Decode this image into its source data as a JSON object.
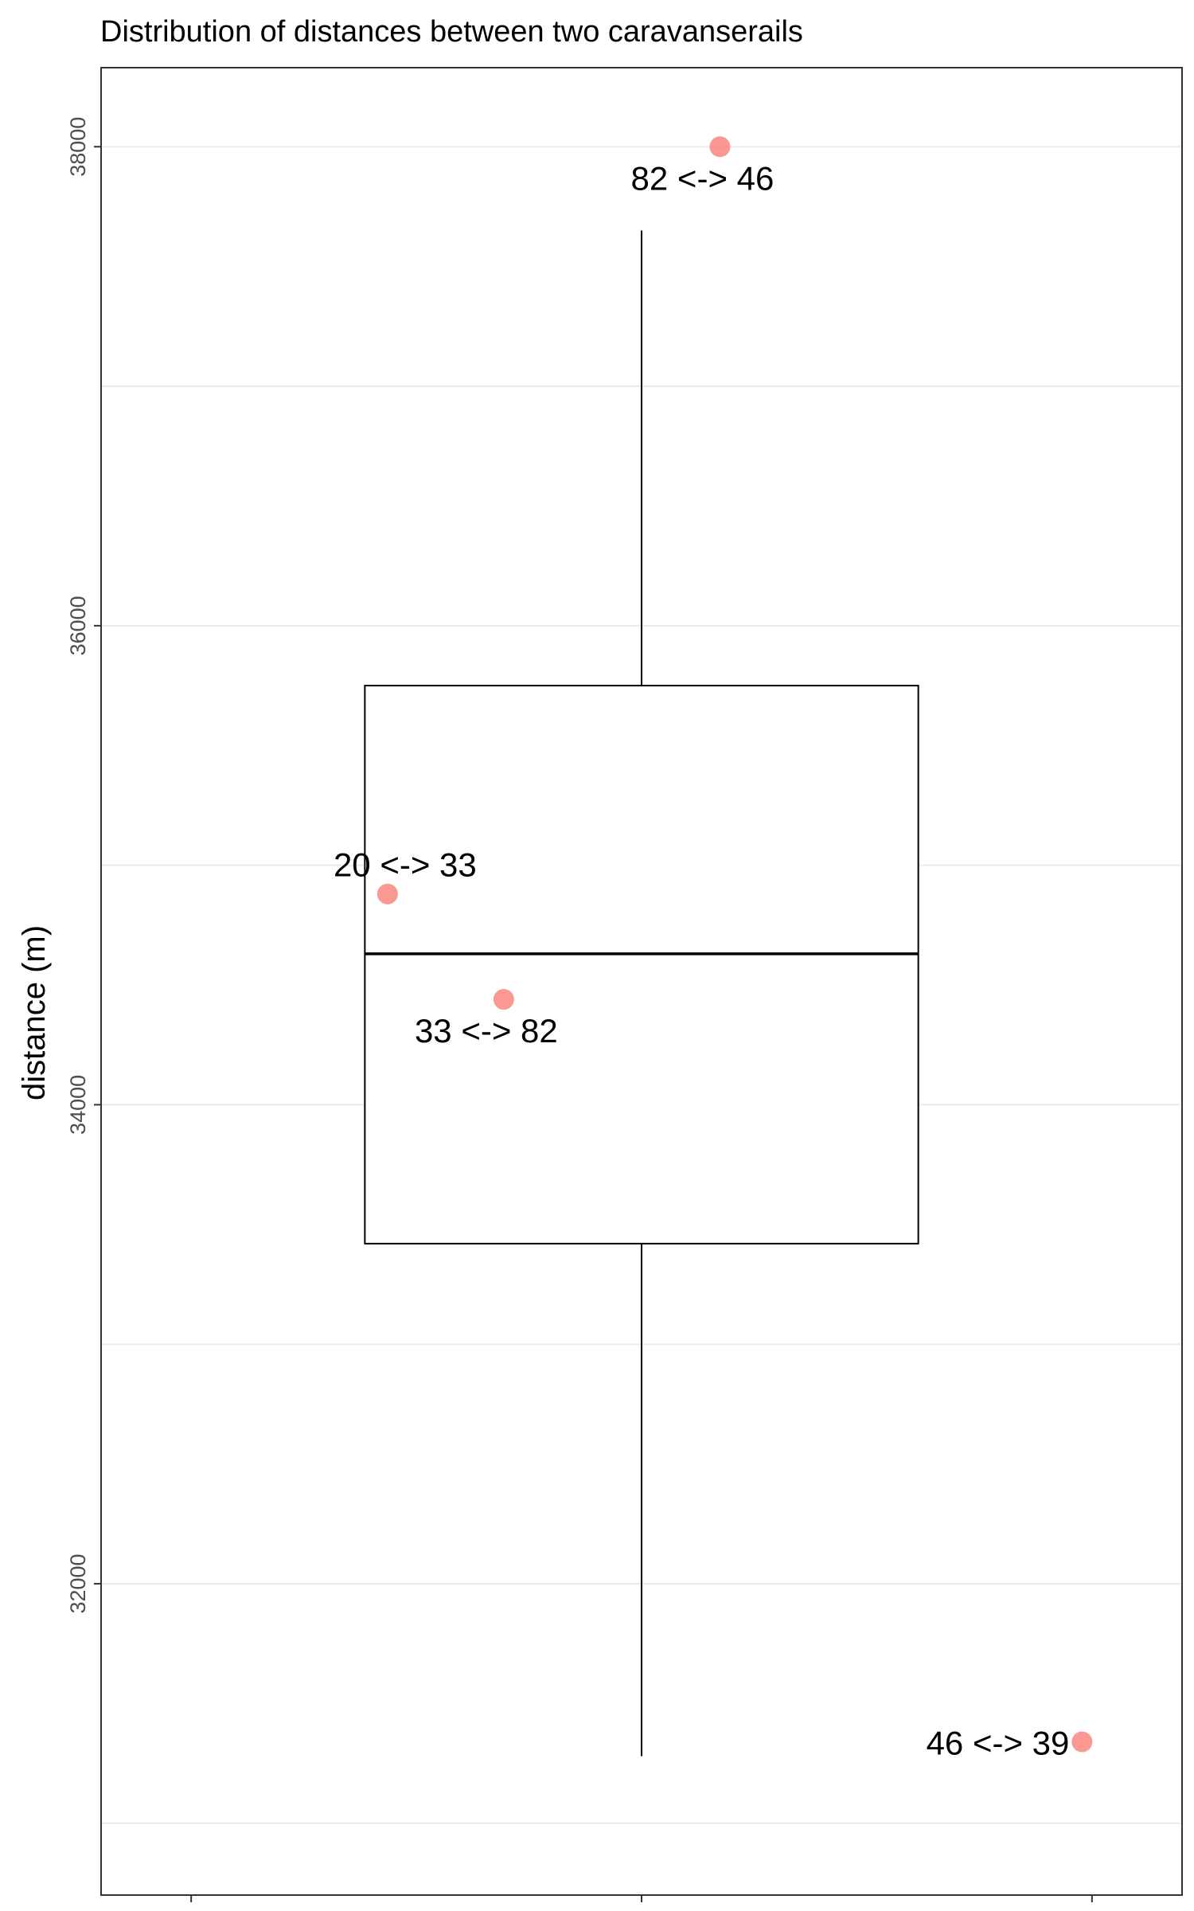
{
  "chart_data": {
    "type": "box",
    "title": "Distribution of distances between two caravanserails",
    "ylabel": "distance (m)",
    "xlabel": "",
    "ylim": [
      30700,
      38330
    ],
    "yticks": [
      32000,
      34000,
      36000,
      38000
    ],
    "ytick_labels": [
      "32000",
      "34000",
      "36000",
      "38000"
    ],
    "grid": true,
    "box": {
      "q1": 33420,
      "median": 34630,
      "q3": 35750,
      "whisker_low": 31280,
      "whisker_high": 37650
    },
    "point_color": "#f8766d",
    "points": [
      {
        "label": "82 <-> 46",
        "y": 38000,
        "jitter": 0.29,
        "label_pos": "below"
      },
      {
        "label": "20 <-> 33",
        "y": 34880,
        "jitter": -0.94,
        "label_pos": "above"
      },
      {
        "label": "33 <-> 82",
        "y": 34440,
        "jitter": -0.51,
        "label_pos": "below"
      },
      {
        "label": "46 <-> 39",
        "y": 31340,
        "jitter": 1.63,
        "label_pos": "left"
      }
    ]
  }
}
